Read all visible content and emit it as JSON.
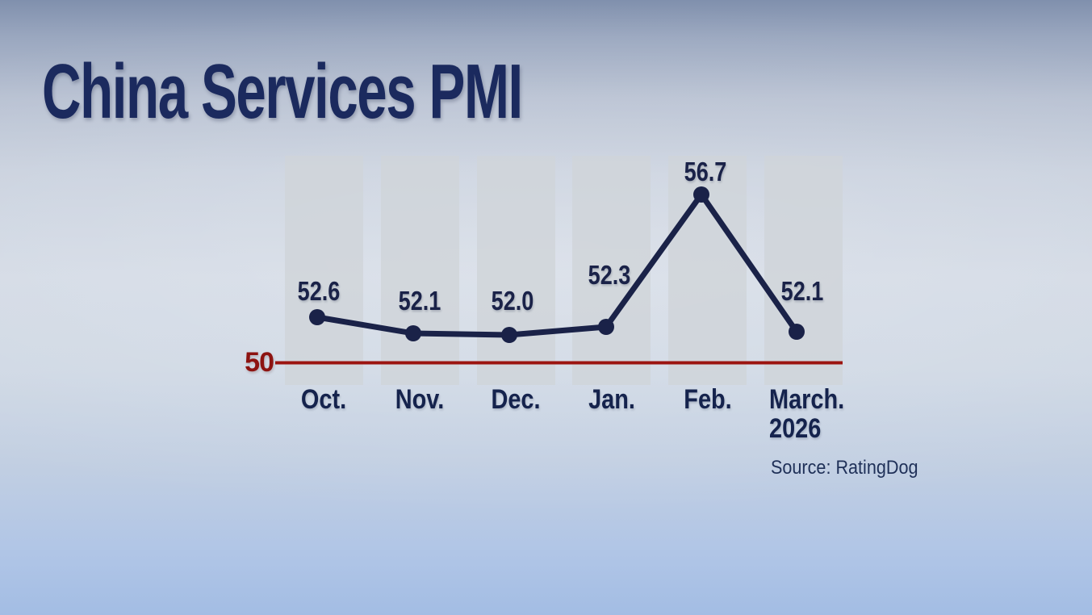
{
  "title": "China Services PMI",
  "source": "Source: RatingDog",
  "chart_data": {
    "type": "line",
    "title": "China Services PMI",
    "categories": [
      "Oct.",
      "Nov.",
      "Dec.",
      "Jan.",
      "Feb.",
      "March."
    ],
    "year_label": "2026",
    "series": [
      {
        "name": "China Services PMI",
        "values": [
          52.6,
          52.1,
          52.0,
          52.3,
          56.7,
          52.1
        ]
      }
    ],
    "value_labels": [
      "52.6",
      "52.1",
      "52.0",
      "52.3",
      "56.7",
      "52.1"
    ],
    "baseline": {
      "value": 50,
      "label": "50",
      "line_color": "#9c1410",
      "label_color": "#8d1311"
    },
    "ylim": [
      49.5,
      58.5
    ],
    "xlabel": "",
    "ylabel": "",
    "grid": false,
    "legend_position": "none",
    "colors": {
      "line": "#1a2248",
      "dot": "#1a2248",
      "column_background": "#d0d4d9",
      "title": "#1b2a5e",
      "value_label": "#1a2248",
      "month_label": "#15234d",
      "source": "#1f3058"
    }
  }
}
